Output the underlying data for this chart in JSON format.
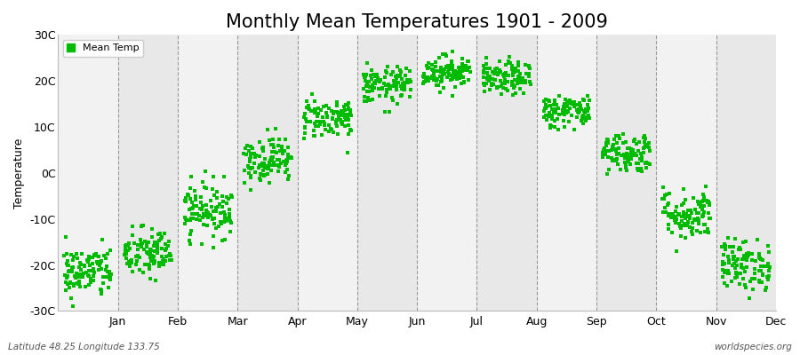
{
  "title": "Monthly Mean Temperatures 1901 - 2009",
  "ylabel": "Temperature",
  "bottom_left_label": "Latitude 48.25 Longitude 133.75",
  "bottom_right_label": "worldspecies.org",
  "legend_label": "Mean Temp",
  "dot_color": "#00BB00",
  "band_color_light": "#F2F2F2",
  "band_color_dark": "#E8E8E8",
  "yticks": [
    -30,
    -20,
    -10,
    0,
    10,
    20,
    30
  ],
  "ytick_labels": [
    "-30C",
    "-20C",
    "-10C",
    "0C",
    "10C",
    "20C",
    "30C"
  ],
  "ylim": [
    -30,
    30
  ],
  "months": [
    "Jan",
    "Feb",
    "Mar",
    "Apr",
    "May",
    "Jun",
    "Jul",
    "Aug",
    "Sep",
    "Oct",
    "Nov",
    "Dec"
  ],
  "month_mean_temps": [
    -21.5,
    -17.5,
    -8.0,
    3.0,
    12.0,
    19.0,
    22.0,
    20.5,
    13.5,
    4.5,
    -9.0,
    -20.0
  ],
  "month_std_temps": [
    2.8,
    2.8,
    3.0,
    2.5,
    2.2,
    2.0,
    1.8,
    1.8,
    1.8,
    2.2,
    2.8,
    2.8
  ],
  "n_years": 109,
  "title_fontsize": 15,
  "label_fontsize": 9,
  "tick_fontsize": 9,
  "dot_size": 5
}
